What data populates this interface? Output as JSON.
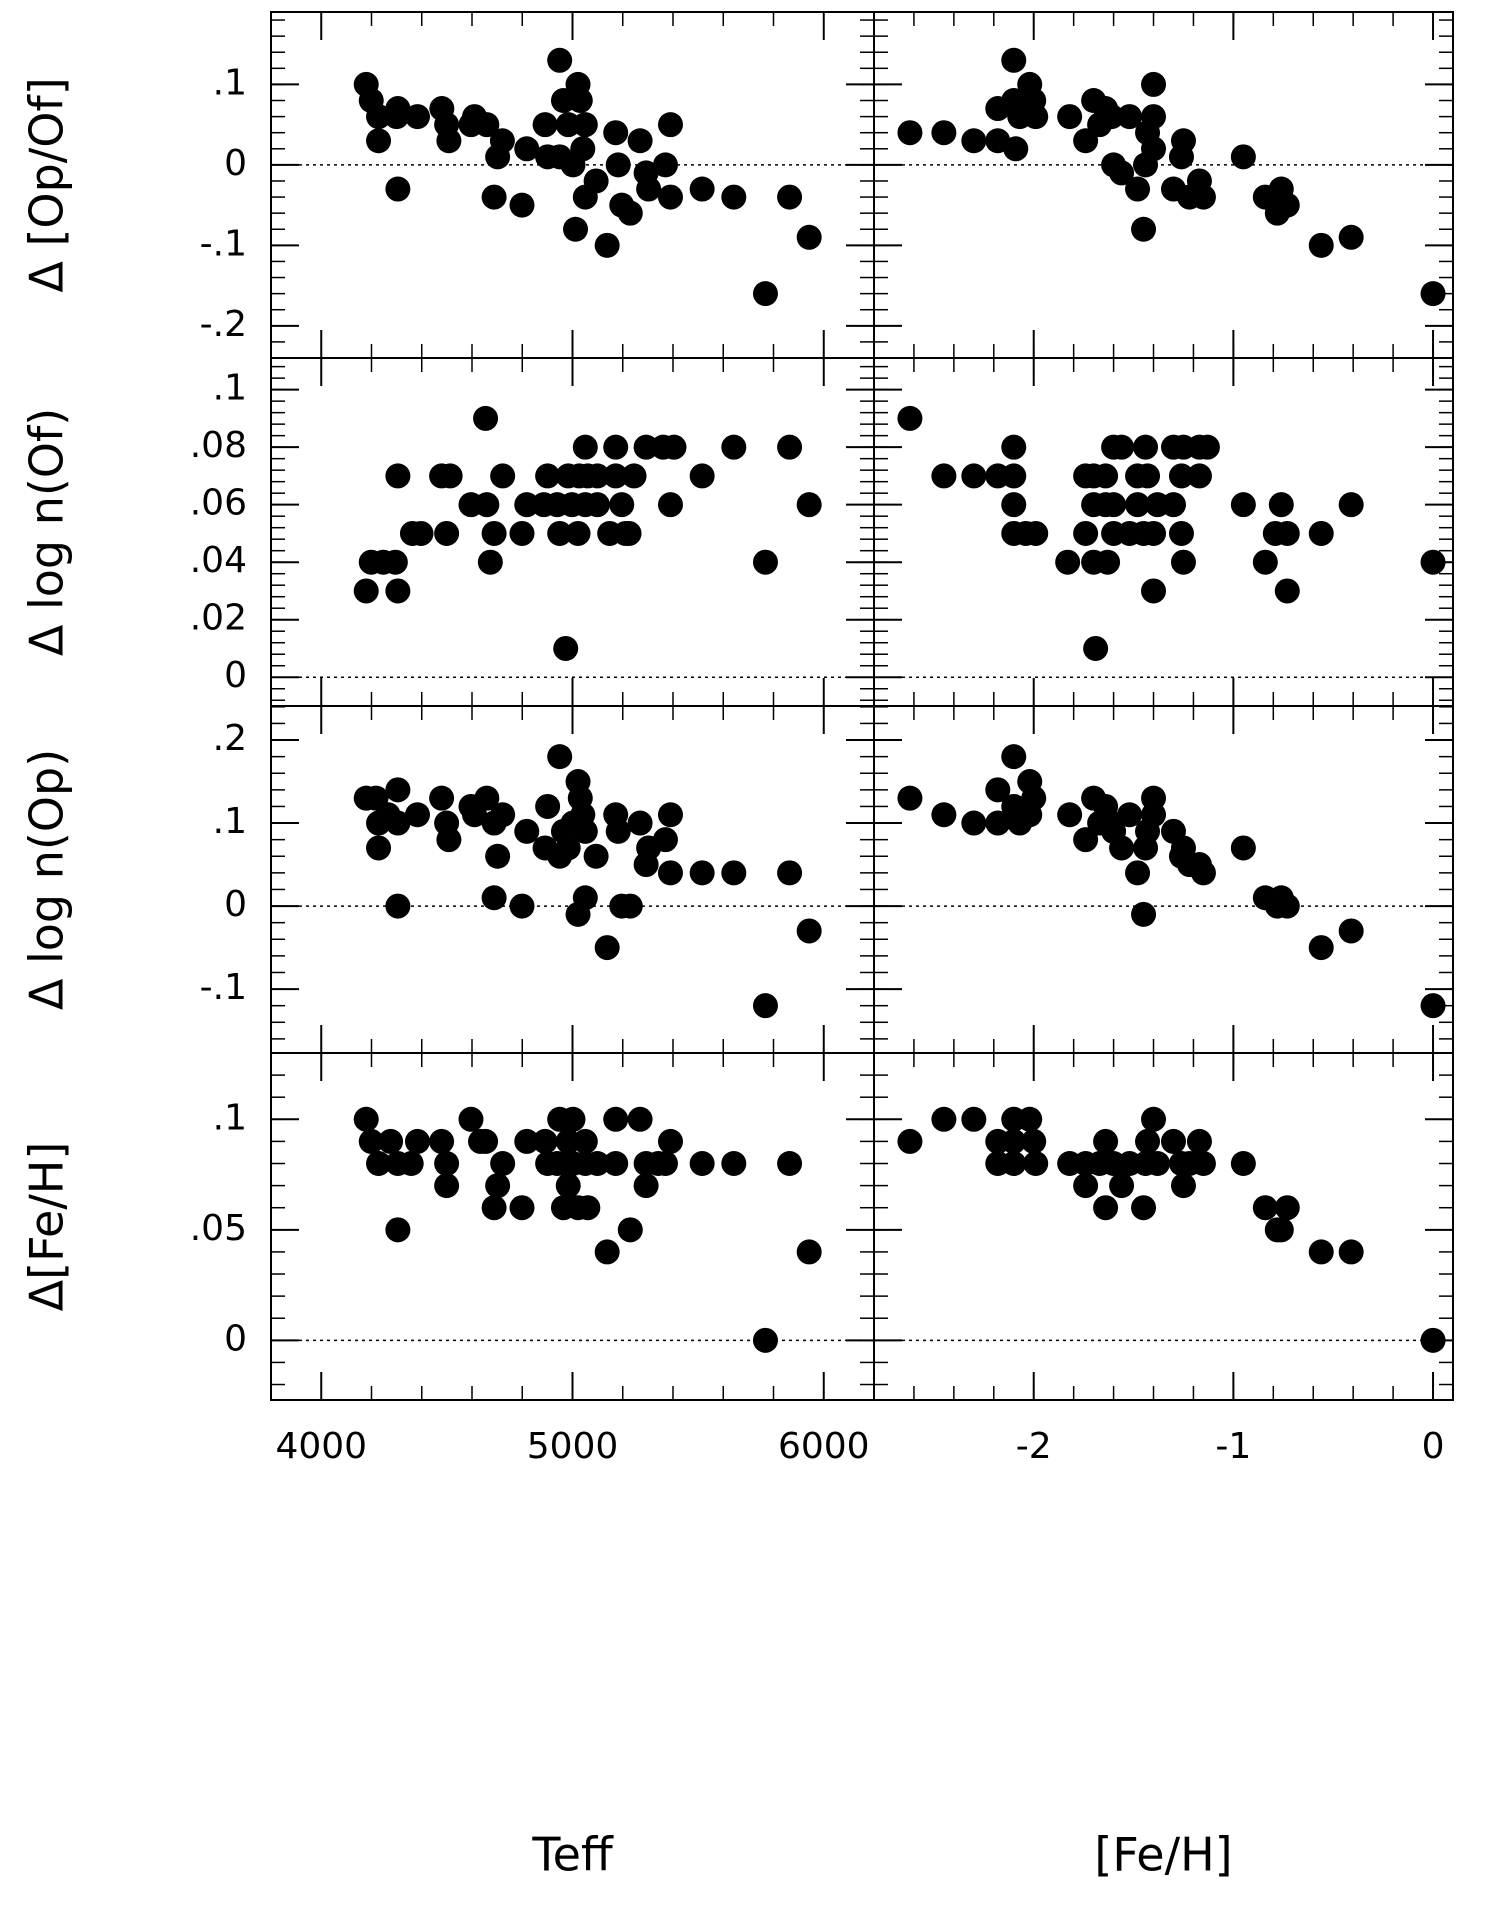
{
  "chart_data": [
    {
      "type": "scatter",
      "ylabel": "Δ [Op/Of]",
      "color": "#000000",
      "zero_line": true,
      "xlim": [
        3800,
        6200
      ],
      "ylim": [
        -0.24,
        0.19
      ],
      "yticks": [
        {
          "value": -0.2,
          "label": "-.2"
        },
        {
          "value": -0.1,
          "label": "-.1"
        },
        0,
        {
          "value": 0.1,
          "label": ".1"
        }
      ],
      "x": [
        4179,
        4199,
        4228,
        4228,
        4300,
        4305,
        4305,
        4383,
        4480,
        4499,
        4508,
        4596,
        4610,
        4659,
        4688,
        4702,
        4721,
        4799,
        4818,
        4891,
        4901,
        4949,
        4949,
        4964,
        4983,
        5002,
        5012,
        5022,
        5031,
        5041,
        5051,
        5051,
        5094,
        5138,
        5172,
        5182,
        5196,
        5230,
        5269,
        5293,
        5303,
        5370,
        5390,
        5390,
        5516,
        5642,
        5768,
        5864,
        5942
      ],
      "values": [
        0.1,
        0.08,
        0.06,
        0.03,
        0.06,
        0.07,
        -0.03,
        0.06,
        0.07,
        0.05,
        0.03,
        0.05,
        0.06,
        0.05,
        -0.04,
        0.01,
        0.03,
        -0.05,
        0.02,
        0.05,
        0.01,
        0.13,
        0.01,
        0.08,
        0.05,
        0,
        -0.08,
        0.1,
        0.08,
        0.02,
        0.05,
        -0.04,
        -0.02,
        -0.1,
        0.04,
        0,
        -0.05,
        -0.06,
        0.03,
        -0.01,
        -0.03,
        0,
        0.05,
        -0.04,
        -0.03,
        -0.04,
        -0.16,
        -0.04,
        -0.09
      ]
    },
    {
      "type": "scatter",
      "color": "#000000",
      "zero_line": true,
      "xlim": [
        -2.8,
        0.1
      ],
      "ylim": [
        -0.24,
        0.19
      ],
      "x": [
        -2.62,
        -2.45,
        -2.3,
        -2.18,
        -2.18,
        -2.1,
        -2.1,
        -2.09,
        -2.07,
        -2.02,
        -2.02,
        -2.0,
        -1.99,
        -1.82,
        -1.74,
        -1.7,
        -1.67,
        -1.64,
        -1.61,
        -1.6,
        -1.56,
        -1.52,
        -1.48,
        -1.45,
        -1.44,
        -1.43,
        -1.4,
        -1.4,
        -1.4,
        -1.3,
        -1.26,
        -1.25,
        -1.22,
        -1.17,
        -1.15,
        -0.95,
        -0.84,
        -0.78,
        -0.76,
        -0.73,
        -0.56,
        -0.41,
        0.0
      ],
      "values": [
        0.04,
        0.04,
        0.03,
        0.07,
        0.03,
        0.13,
        0.08,
        0.02,
        0.06,
        0.1,
        0.07,
        0.08,
        0.06,
        0.06,
        0.03,
        0.08,
        0.05,
        0.07,
        0.06,
        0,
        -0.01,
        0.06,
        -0.03,
        -0.08,
        0,
        0.04,
        0.1,
        0.06,
        0.02,
        -0.03,
        0.01,
        0.03,
        -0.04,
        -0.02,
        -0.04,
        0.01,
        -0.04,
        -0.06,
        -0.03,
        -0.05,
        -0.1,
        -0.09,
        -0.16
      ]
    },
    {
      "type": "scatter",
      "ylabel": "Δ log n(Of)",
      "color": "#000000",
      "zero_line": true,
      "xlim": [
        3800,
        6200
      ],
      "ylim": [
        -0.01,
        0.111
      ],
      "yticks": [
        0,
        {
          "value": 0.02,
          "label": ".02"
        },
        {
          "value": 0.04,
          "label": ".04"
        },
        {
          "value": 0.06,
          "label": ".06"
        },
        {
          "value": 0.08,
          "label": ".08"
        },
        {
          "value": 0.1,
          "label": ".1"
        }
      ],
      "x": [
        5051,
        5172,
        5293,
        5361,
        5404,
        5642,
        5864,
        4305,
        4479,
        4513,
        4722,
        4901,
        4983,
        5027,
        5061,
        5099,
        5172,
        5245,
        5516,
        4596,
        4659,
        4818,
        4886,
        4939,
        4998,
        5051,
        5099,
        5196,
        5390,
        5942,
        4363,
        4397,
        4499,
        4688,
        4799,
        4949,
        5022,
        5148,
        5211,
        5225,
        4199,
        4247,
        4295,
        4673,
        5768,
        4179,
        4305,
        4654,
        4973
      ],
      "values": [
        0.08,
        0.08,
        0.08,
        0.08,
        0.08,
        0.08,
        0.08,
        0.07,
        0.07,
        0.07,
        0.07,
        0.07,
        0.07,
        0.07,
        0.07,
        0.07,
        0.07,
        0.07,
        0.07,
        0.06,
        0.06,
        0.06,
        0.06,
        0.06,
        0.06,
        0.06,
        0.06,
        0.06,
        0.06,
        0.06,
        0.05,
        0.05,
        0.05,
        0.05,
        0.05,
        0.05,
        0.05,
        0.05,
        0.05,
        0.05,
        0.04,
        0.04,
        0.04,
        0.04,
        0.04,
        0.03,
        0.03,
        0.09,
        0.01
      ]
    },
    {
      "type": "scatter",
      "color": "#000000",
      "zero_line": true,
      "xlim": [
        -2.8,
        0.1
      ],
      "ylim": [
        -0.01,
        0.111
      ],
      "x": [
        -2.62,
        -2.45,
        -2.3,
        -2.18,
        -2.1,
        -1.74,
        -1.7,
        -1.64,
        -1.48,
        -1.43,
        -1.26,
        -1.17,
        -2.1,
        -1.6,
        -1.56,
        -1.44,
        -1.3,
        -1.25,
        -1.17,
        -1.13,
        -2.1,
        -1.7,
        -1.64,
        -1.6,
        -1.48,
        -1.38,
        -1.3,
        -0.95,
        -0.76,
        -0.41,
        -2.1,
        -2.04,
        -1.99,
        -1.74,
        -1.6,
        -1.52,
        -1.45,
        -1.4,
        -1.26,
        -0.79,
        -0.73,
        -0.56,
        -1.83,
        -1.7,
        -1.63,
        -1.25,
        -0.84,
        0.0,
        -1.4,
        -0.73,
        -1.69
      ],
      "values": [
        0.09,
        0.07,
        0.07,
        0.07,
        0.07,
        0.07,
        0.07,
        0.07,
        0.07,
        0.07,
        0.07,
        0.07,
        0.08,
        0.08,
        0.08,
        0.08,
        0.08,
        0.08,
        0.08,
        0.08,
        0.06,
        0.06,
        0.06,
        0.06,
        0.06,
        0.06,
        0.06,
        0.06,
        0.06,
        0.06,
        0.05,
        0.05,
        0.05,
        0.05,
        0.05,
        0.05,
        0.05,
        0.05,
        0.05,
        0.05,
        0.05,
        0.05,
        0.04,
        0.04,
        0.04,
        0.04,
        0.04,
        0.04,
        0.03,
        0.03,
        0.01
      ]
    },
    {
      "type": "scatter",
      "ylabel": "Δ log n(Op)",
      "color": "#000000",
      "zero_line": true,
      "xlim": [
        3800,
        6200
      ],
      "ylim": [
        -0.177,
        0.241
      ],
      "yticks": [
        {
          "value": -0.1,
          "label": "-.1"
        },
        0,
        {
          "value": 0.1,
          "label": ".1"
        },
        {
          "value": 0.2,
          "label": ".2"
        }
      ],
      "x": [
        4179,
        4218,
        4228,
        4228,
        4266,
        4305,
        4305,
        4383,
        4305,
        4479,
        4499,
        4508,
        4596,
        4610,
        4659,
        4688,
        4702,
        4722,
        4688,
        4799,
        4818,
        4901,
        4891,
        4949,
        4949,
        4964,
        4983,
        5002,
        5022,
        5022,
        5031,
        5041,
        5051,
        5051,
        5094,
        5138,
        5172,
        5182,
        5196,
        5230,
        5269,
        5293,
        5303,
        5370,
        5390,
        5390,
        5516,
        5642,
        5768,
        5864,
        5942
      ],
      "values": [
        0.13,
        0.13,
        0.1,
        0.07,
        0.11,
        0.14,
        0.1,
        0.11,
        0,
        0.13,
        0.1,
        0.08,
        0.12,
        0.11,
        0.13,
        0.1,
        0.06,
        0.11,
        0.01,
        0,
        0.09,
        0.12,
        0.07,
        0.18,
        0.06,
        0.09,
        0.07,
        0.1,
        0.15,
        -0.01,
        0.13,
        0.11,
        0.01,
        0.09,
        0.06,
        -0.05,
        0.11,
        0.09,
        0,
        0,
        0.1,
        0.05,
        0.07,
        0.08,
        0.11,
        0.04,
        0.04,
        0.04,
        -0.12,
        0.04,
        -0.03
      ]
    },
    {
      "type": "scatter",
      "color": "#000000",
      "zero_line": true,
      "xlim": [
        -2.8,
        0.1
      ],
      "ylim": [
        -0.177,
        0.241
      ],
      "x": [
        -2.62,
        -2.45,
        -2.3,
        -2.18,
        -2.18,
        -2.1,
        -2.1,
        -2.07,
        -2.02,
        -2.02,
        -2.0,
        -1.82,
        -1.74,
        -1.7,
        -1.67,
        -1.64,
        -1.61,
        -1.6,
        -1.56,
        -1.52,
        -1.48,
        -1.45,
        -1.44,
        -1.43,
        -1.4,
        -1.4,
        -1.3,
        -1.26,
        -1.25,
        -1.22,
        -1.17,
        -1.15,
        -0.95,
        -0.84,
        -0.78,
        -0.76,
        -0.73,
        -0.56,
        -0.41,
        0.0
      ],
      "values": [
        0.13,
        0.11,
        0.1,
        0.14,
        0.1,
        0.18,
        0.12,
        0.1,
        0.15,
        0.11,
        0.13,
        0.11,
        0.08,
        0.13,
        0.1,
        0.12,
        0.1,
        0.09,
        0.07,
        0.11,
        0.04,
        -0.01,
        0.07,
        0.09,
        0.13,
        0.11,
        0.09,
        0.06,
        0.07,
        0.05,
        0.05,
        0.04,
        0.07,
        0.01,
        0,
        0.01,
        0,
        -0.05,
        -0.03,
        -0.12
      ]
    },
    {
      "type": "scatter",
      "ylabel": "Δ[Fe/H]",
      "xlabel": "Teff",
      "color": "#000000",
      "zero_line": true,
      "xlim": [
        3800,
        6200
      ],
      "ylim": [
        -0.027,
        0.13
      ],
      "xticks": [
        4000,
        5000,
        6000
      ],
      "yticks": [
        0,
        {
          "value": 0.05,
          "label": ".05"
        },
        {
          "value": 0.1,
          "label": ".1"
        }
      ],
      "x": [
        4179,
        4596,
        4949,
        5002,
        5172,
        5269,
        4199,
        4276,
        4383,
        4479,
        4634,
        4654,
        4818,
        4891,
        4983,
        5051,
        5390,
        4228,
        4305,
        4358,
        4499,
        4722,
        4901,
        4939,
        4964,
        5002,
        5051,
        5099,
        5172,
        5293,
        5341,
        5370,
        5516,
        5642,
        5864,
        4499,
        4702,
        4983,
        5293,
        4688,
        4799,
        4964,
        5022,
        5061,
        4305,
        5230,
        5138,
        5942,
        5768
      ],
      "values": [
        0.1,
        0.1,
        0.1,
        0.1,
        0.1,
        0.1,
        0.09,
        0.09,
        0.09,
        0.09,
        0.09,
        0.09,
        0.09,
        0.09,
        0.09,
        0.09,
        0.09,
        0.08,
        0.08,
        0.08,
        0.08,
        0.08,
        0.08,
        0.08,
        0.08,
        0.08,
        0.08,
        0.08,
        0.08,
        0.08,
        0.08,
        0.08,
        0.08,
        0.08,
        0.08,
        0.07,
        0.07,
        0.07,
        0.07,
        0.06,
        0.06,
        0.06,
        0.06,
        0.06,
        0.05,
        0.05,
        0.04,
        0.04,
        0
      ]
    },
    {
      "type": "scatter",
      "xlabel": "[Fe/H]",
      "color": "#000000",
      "zero_line": true,
      "xlim": [
        -2.8,
        0.1
      ],
      "ylim": [
        -0.027,
        0.13
      ],
      "xticks": [
        -2,
        -1,
        0
      ],
      "x": [
        -2.45,
        -2.3,
        -2.1,
        -2.02,
        -1.4,
        -2.62,
        -2.18,
        -2.1,
        -2.0,
        -1.64,
        -1.43,
        -1.3,
        -1.17,
        -2.18,
        -2.1,
        -1.99,
        -1.82,
        -1.74,
        -1.67,
        -1.6,
        -1.52,
        -1.44,
        -1.38,
        -1.26,
        -1.22,
        -1.15,
        -0.95,
        -1.74,
        -1.56,
        -1.25,
        -1.64,
        -1.45,
        -0.84,
        -0.73,
        -0.78,
        -0.76,
        -0.56,
        -0.41,
        0.0
      ],
      "values": [
        0.1,
        0.1,
        0.1,
        0.1,
        0.1,
        0.09,
        0.09,
        0.09,
        0.09,
        0.09,
        0.09,
        0.09,
        0.09,
        0.08,
        0.08,
        0.08,
        0.08,
        0.08,
        0.08,
        0.08,
        0.08,
        0.08,
        0.08,
        0.08,
        0.08,
        0.08,
        0.08,
        0.07,
        0.07,
        0.07,
        0.06,
        0.06,
        0.06,
        0.06,
        0.05,
        0.05,
        0.04,
        0.04,
        0
      ]
    }
  ]
}
